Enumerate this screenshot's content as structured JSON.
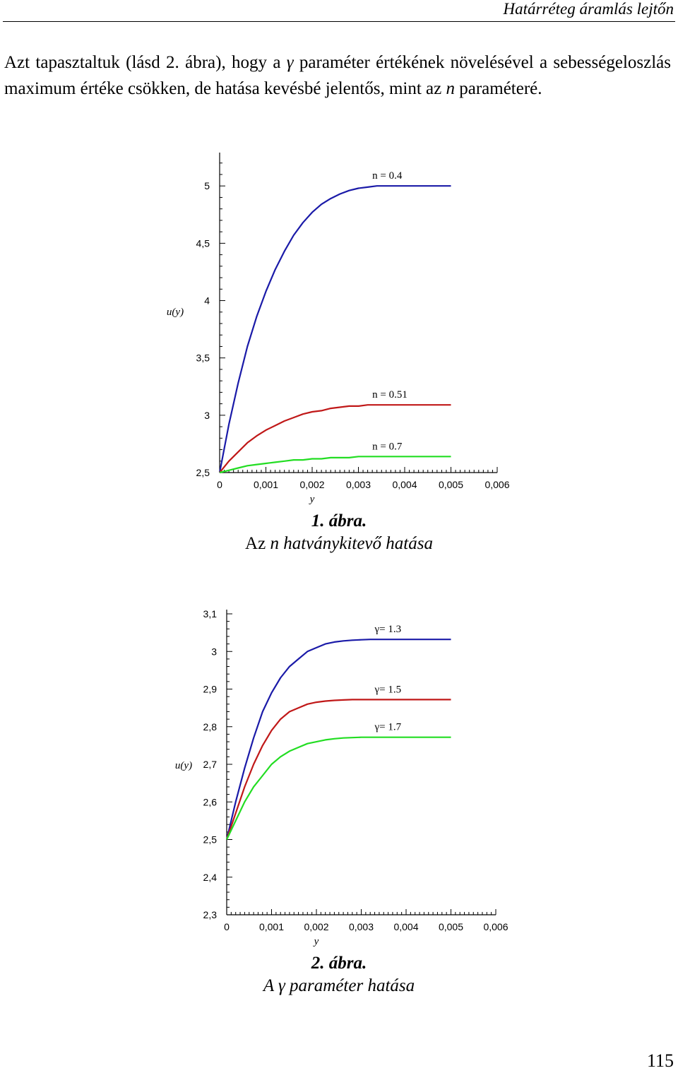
{
  "header": {
    "running_title": "Határréteg áramlás lejtőn"
  },
  "paragraph": {
    "t1": "Azt tapasztaltuk (lásd 2. ábra), hogy a ",
    "sym1": "γ",
    "t2": " paraméter értékének növelésével a sebességeloszlás maximum értéke csökken, de hatása kevésbé jelentős, mint az ",
    "sym2": "n",
    "t3": " paraméteré."
  },
  "figure1": {
    "number": "1. ábra.",
    "caption_pre": "Az ",
    "caption_sym": "n",
    "caption_post": " hatványkitevő hatása"
  },
  "figure2": {
    "number": "2. ábra.",
    "caption_pre": "A ",
    "caption_sym": "γ",
    "caption_post": " paraméter hatása"
  },
  "page_number": "115",
  "chart_data": [
    {
      "type": "line",
      "title": "",
      "xlabel": "y",
      "ylabel": "u(y)",
      "xlim": [
        0,
        0.006
      ],
      "ylim": [
        2.5,
        5.1
      ],
      "x_ticks": [
        0,
        0.001,
        0.002,
        0.003,
        0.004,
        0.005,
        0.006
      ],
      "x_tick_labels": [
        "0",
        "0,001",
        "0,002",
        "0,003",
        "0,004",
        "0,005",
        "0,006"
      ],
      "y_ticks": [
        2.5,
        3,
        3.5,
        4,
        4.5,
        5
      ],
      "y_tick_labels": [
        "2,5",
        "3",
        "3,5",
        "4",
        "4,5",
        "5"
      ],
      "grid": false,
      "x": [
        0,
        0.0002,
        0.0004,
        0.0006,
        0.0008,
        0.001,
        0.0012,
        0.0014,
        0.0016,
        0.0018,
        0.002,
        0.0022,
        0.0024,
        0.0026,
        0.0028,
        0.003,
        0.0032,
        0.0034,
        0.0036,
        0.0038,
        0.004,
        0.0042,
        0.0044,
        0.0046,
        0.0048,
        0.005
      ],
      "series": [
        {
          "label": "n = 0.4",
          "color": "#1a1aa8",
          "values": [
            2.5,
            2.92,
            3.28,
            3.6,
            3.86,
            4.08,
            4.27,
            4.43,
            4.57,
            4.68,
            4.77,
            4.84,
            4.89,
            4.93,
            4.96,
            4.98,
            4.99,
            5.0,
            5.0,
            5.0,
            5.0,
            5.0,
            5.0,
            5.0,
            5.0,
            5.0
          ]
        },
        {
          "label": "n = 0.51",
          "color": "#c01818",
          "values": [
            2.5,
            2.6,
            2.68,
            2.76,
            2.82,
            2.87,
            2.91,
            2.95,
            2.98,
            3.01,
            3.03,
            3.04,
            3.06,
            3.07,
            3.08,
            3.08,
            3.09,
            3.09,
            3.09,
            3.09,
            3.09,
            3.09,
            3.09,
            3.09,
            3.09,
            3.09
          ]
        },
        {
          "label": "n = 0.7",
          "color": "#22dd22",
          "values": [
            2.5,
            2.52,
            2.54,
            2.56,
            2.57,
            2.58,
            2.59,
            2.6,
            2.61,
            2.61,
            2.62,
            2.62,
            2.63,
            2.63,
            2.63,
            2.64,
            2.64,
            2.64,
            2.64,
            2.64,
            2.64,
            2.64,
            2.64,
            2.64,
            2.64,
            2.64
          ]
        }
      ]
    },
    {
      "type": "line",
      "title": "",
      "xlabel": "y",
      "ylabel": "u(y)",
      "xlim": [
        0,
        0.006
      ],
      "ylim": [
        2.3,
        3.1
      ],
      "x_ticks": [
        0,
        0.001,
        0.002,
        0.003,
        0.004,
        0.005,
        0.006
      ],
      "x_tick_labels": [
        "0",
        "0,001",
        "0,002",
        "0,003",
        "0,004",
        "0,005",
        "0,006"
      ],
      "y_ticks": [
        2.3,
        2.4,
        2.5,
        2.6,
        2.7,
        2.8,
        2.9,
        3.0,
        3.1
      ],
      "y_tick_labels": [
        "2,3",
        "2,4",
        "2,5",
        "2,6",
        "2,7",
        "2,8",
        "2,9",
        "3",
        "3,1"
      ],
      "grid": false,
      "x": [
        0,
        0.0002,
        0.0004,
        0.0006,
        0.0008,
        0.001,
        0.0012,
        0.0014,
        0.0016,
        0.0018,
        0.002,
        0.0022,
        0.0024,
        0.0026,
        0.0028,
        0.003,
        0.0032,
        0.0034,
        0.0036,
        0.0038,
        0.004,
        0.0042,
        0.0044,
        0.0046,
        0.0048,
        0.005
      ],
      "series": [
        {
          "label": "γ= 1.3",
          "color": "#1a1aa8",
          "values": [
            2.5,
            2.6,
            2.69,
            2.77,
            2.84,
            2.89,
            2.93,
            2.96,
            2.98,
            3.0,
            3.01,
            3.02,
            3.025,
            3.028,
            3.03,
            3.031,
            3.032,
            3.032,
            3.032,
            3.032,
            3.032,
            3.032,
            3.032,
            3.032,
            3.032,
            3.032
          ]
        },
        {
          "label": "γ= 1.5",
          "color": "#c01818",
          "values": [
            2.5,
            2.57,
            2.64,
            2.7,
            2.75,
            2.79,
            2.82,
            2.84,
            2.85,
            2.86,
            2.865,
            2.868,
            2.87,
            2.871,
            2.872,
            2.872,
            2.872,
            2.872,
            2.872,
            2.872,
            2.872,
            2.872,
            2.872,
            2.872,
            2.872,
            2.872
          ]
        },
        {
          "label": "γ= 1.7",
          "color": "#22dd22",
          "values": [
            2.5,
            2.55,
            2.6,
            2.64,
            2.67,
            2.7,
            2.72,
            2.735,
            2.745,
            2.755,
            2.76,
            2.765,
            2.768,
            2.77,
            2.771,
            2.772,
            2.772,
            2.772,
            2.772,
            2.772,
            2.772,
            2.772,
            2.772,
            2.772,
            2.772,
            2.772
          ]
        }
      ]
    }
  ]
}
